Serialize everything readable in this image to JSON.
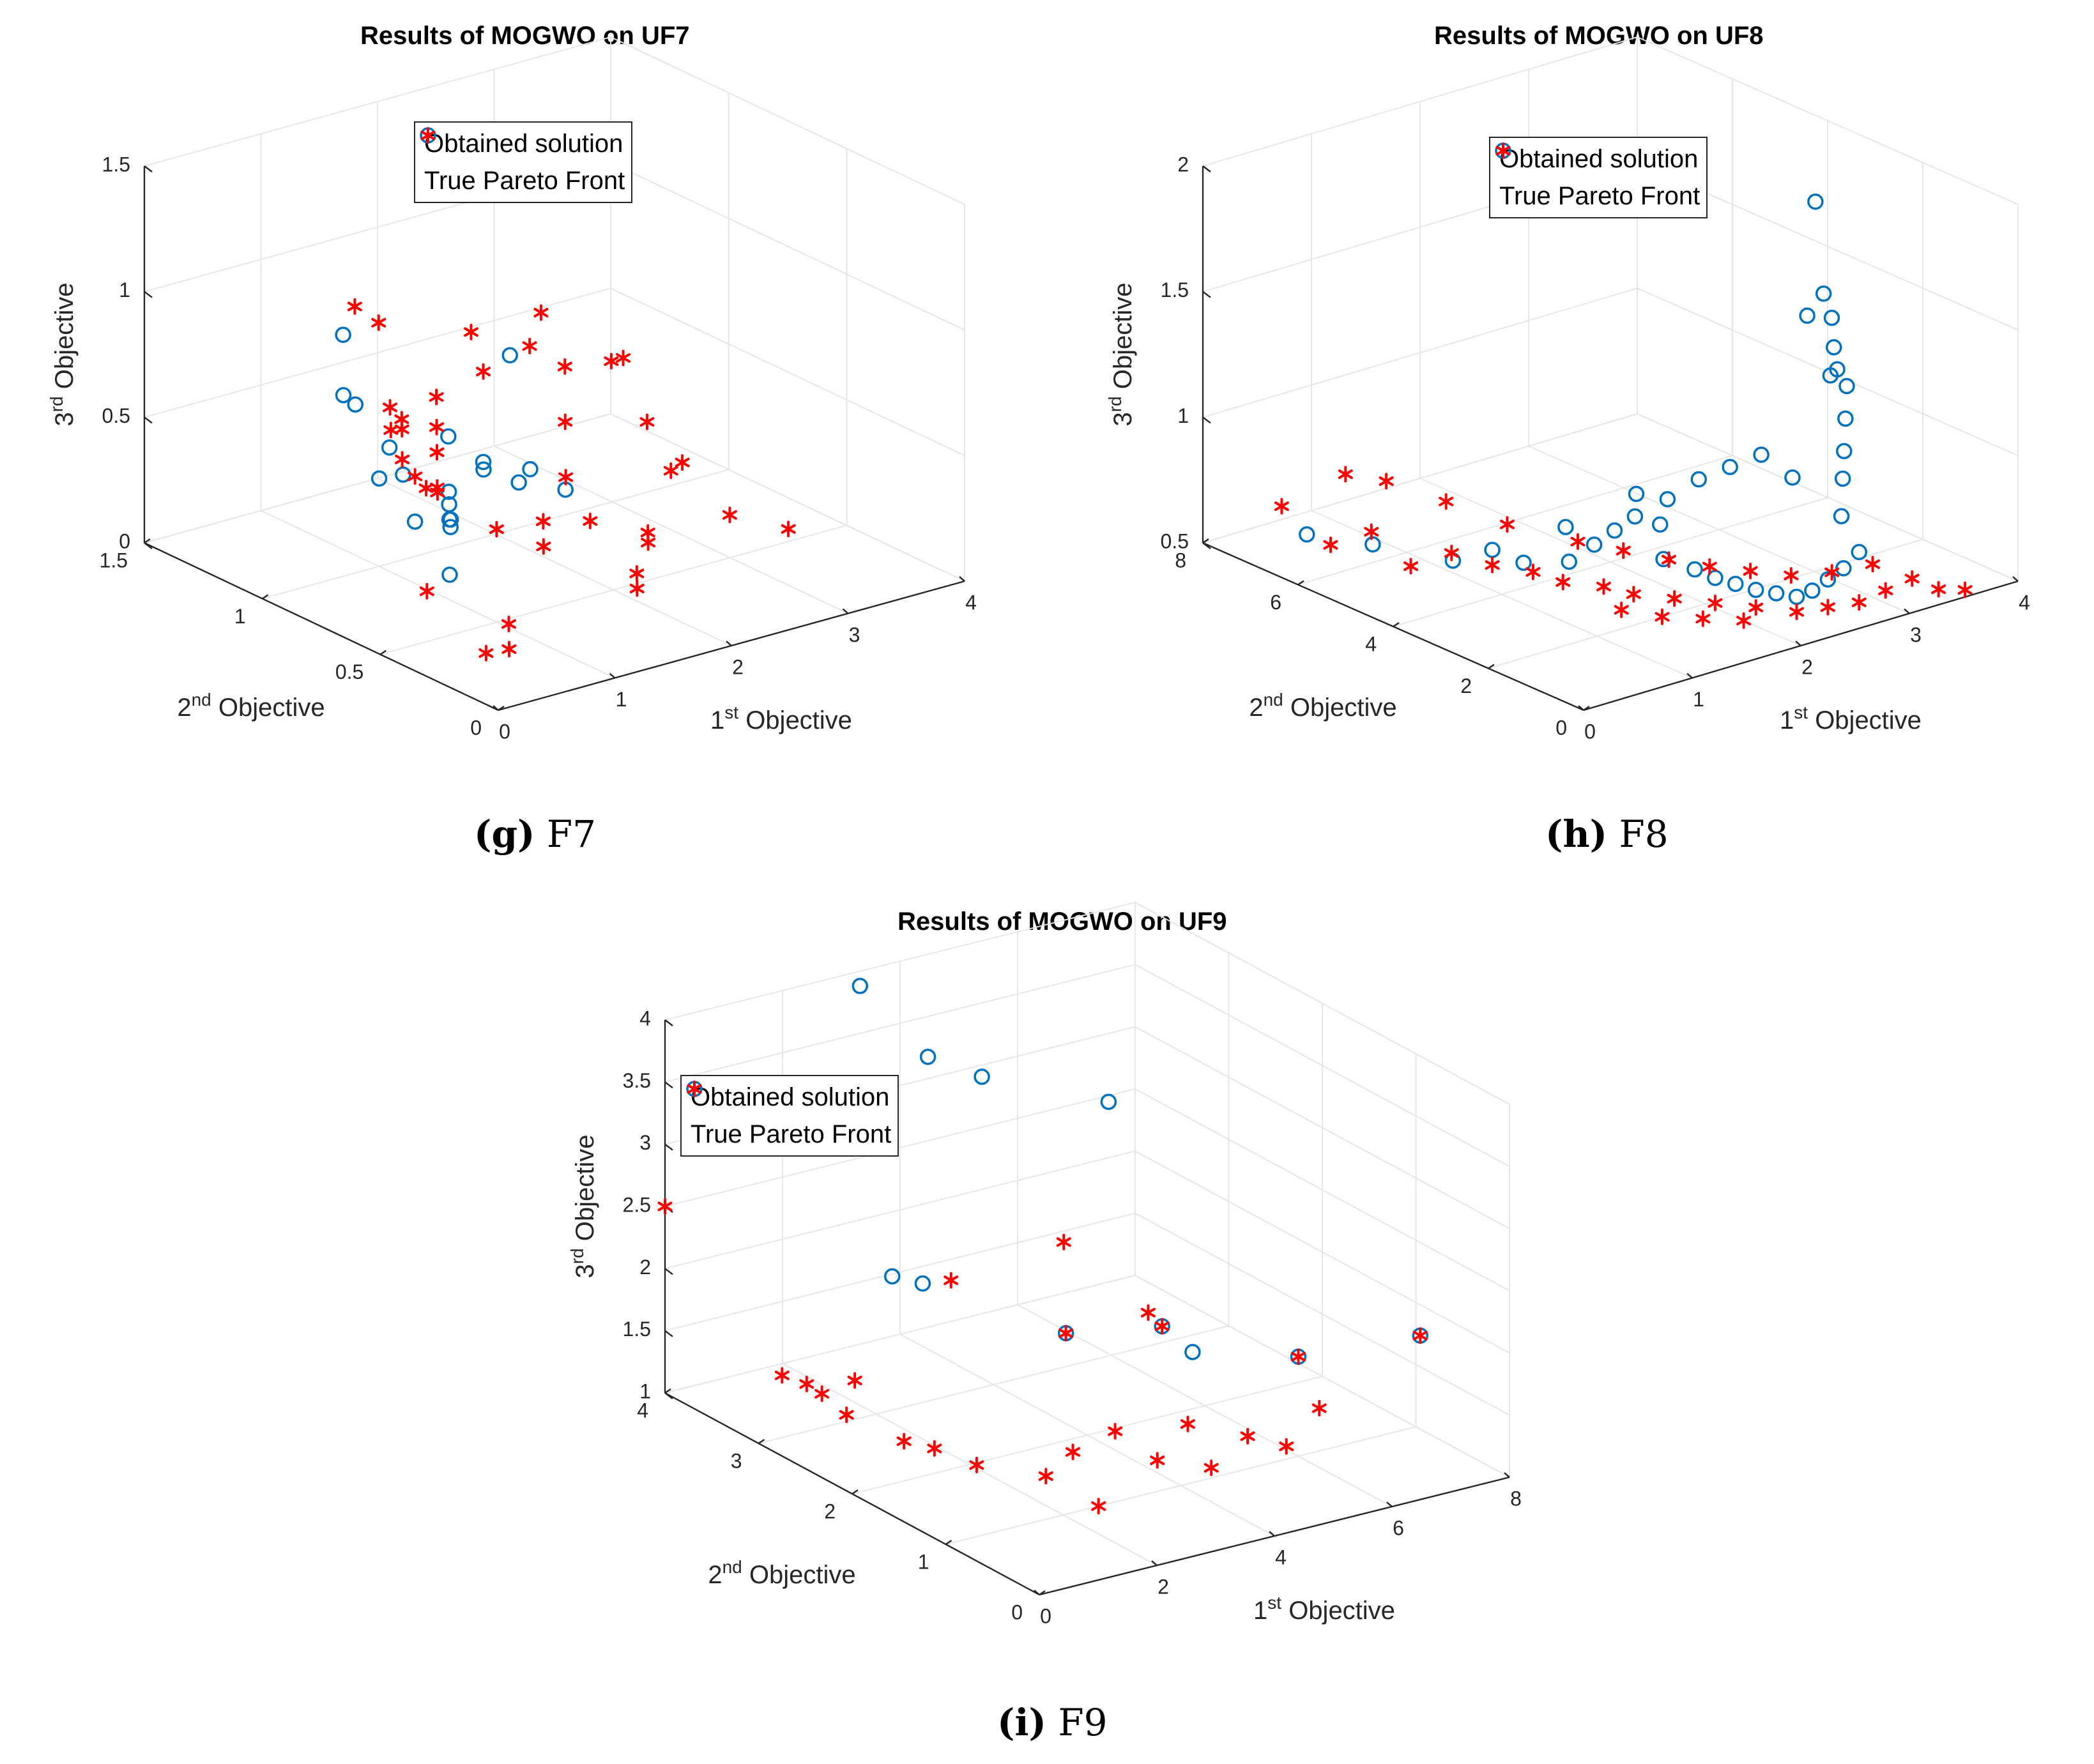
{
  "legend": {
    "obtained": "Obtained solution",
    "true_front": "True Pareto Front"
  },
  "colors": {
    "obtained": "#0072BD",
    "true_front": "#FF0000",
    "grid": "#E6E6E6",
    "axis": "#262626"
  },
  "panels": [
    {
      "title": "Results of MOGWO on UF7",
      "caption_letter": "(g)",
      "caption_text": "F7",
      "xlabel_base": "1",
      "xlabel_sup": "st",
      "xlabel_rest": " Objective",
      "ylabel_base": "2",
      "ylabel_sup": "nd",
      "ylabel_rest": " Objective",
      "zlabel_base": "3",
      "zlabel_sup": "rd",
      "zlabel_rest": " Objective"
    },
    {
      "title": "Results of MOGWO on UF8",
      "caption_letter": "(h)",
      "caption_text": "F8",
      "xlabel_base": "1",
      "xlabel_sup": "st",
      "xlabel_rest": " Objective",
      "ylabel_base": "2",
      "ylabel_sup": "nd",
      "ylabel_rest": " Objective",
      "zlabel_base": "3",
      "zlabel_sup": "rd",
      "zlabel_rest": " Objective"
    },
    {
      "title": "Results of MOGWO on UF9",
      "caption_letter": "(i)",
      "caption_text": "F9",
      "xlabel_base": "1",
      "xlabel_sup": "st",
      "xlabel_rest": " Objective",
      "ylabel_base": "2",
      "ylabel_sup": "nd",
      "ylabel_rest": " Objective",
      "zlabel_base": "3",
      "zlabel_sup": "rd",
      "zlabel_rest": " Objective"
    }
  ],
  "chart_data": [
    {
      "type": "scatter",
      "title": "Results of MOGWO on UF7",
      "xlabel": "1st Objective",
      "ylabel": "2nd Objective",
      "zlabel": "3rd Objective",
      "xlim": [
        0,
        4
      ],
      "ylim": [
        0,
        1.5
      ],
      "zlim": [
        0,
        1.5
      ],
      "xticks": [
        "0",
        "1",
        "2",
        "3",
        "4"
      ],
      "yticks": [
        "0",
        "0.5",
        "1",
        "1.5"
      ],
      "zticks": [
        "0",
        "0.5",
        "1",
        "1.5"
      ],
      "grid": true,
      "legend_position": "top",
      "series": [
        {
          "name": "Obtained solution",
          "marker": "circle",
          "points": [
            [
              0.1,
              0.0,
              1.4
            ],
            [
              0.2,
              0.3,
              0.6
            ],
            [
              0.4,
              0.4,
              0.5
            ],
            [
              0.6,
              0.7,
              0.55
            ],
            [
              0.5,
              0.6,
              0.42
            ],
            [
              0.8,
              0.9,
              0.42
            ],
            [
              1.0,
              1.1,
              0.6
            ],
            [
              1.1,
              1.2,
              0.58
            ],
            [
              1.3,
              1.3,
              0.75
            ],
            [
              1.2,
              0.8,
              0.25
            ],
            [
              1.4,
              0.9,
              0.24
            ],
            [
              1.6,
              1.0,
              0.22
            ],
            [
              2.0,
              1.2,
              0.3
            ],
            [
              2.1,
              1.1,
              0.2
            ],
            [
              2.2,
              1.0,
              0.18
            ],
            [
              2.3,
              1.2,
              0.16
            ],
            [
              2.5,
              1.1,
              0.15
            ],
            [
              2.6,
              1.0,
              0.1
            ],
            [
              1.9,
              1.4,
              0.18
            ],
            [
              1.0,
              0.7,
              0.1
            ]
          ]
        },
        {
          "name": "True Pareto Front",
          "marker": "asterisk",
          "points": [
            [
              0.3,
              0.2,
              0.1
            ],
            [
              0.4,
              0.5,
              0.2
            ],
            [
              0.5,
              0.6,
              0.6
            ],
            [
              0.9,
              0.9,
              0.6
            ],
            [
              1.2,
              1.1,
              0.9
            ],
            [
              1.4,
              1.3,
              0.85
            ],
            [
              1.0,
              0.8,
              0.4
            ],
            [
              1.2,
              1.0,
              0.4
            ],
            [
              1.4,
              1.1,
              0.45
            ],
            [
              1.5,
              1.2,
              0.48
            ],
            [
              1.6,
              1.2,
              0.42
            ],
            [
              1.3,
              0.9,
              0.3
            ],
            [
              1.5,
              1.0,
              0.25
            ],
            [
              1.7,
              1.1,
              0.32
            ],
            [
              1.9,
              1.2,
              0.35
            ],
            [
              2.1,
              1.3,
              0.4
            ],
            [
              2.3,
              1.2,
              0.52
            ],
            [
              2.6,
              1.4,
              0.55
            ],
            [
              2.9,
              1.3,
              0.5
            ],
            [
              3.2,
              1.4,
              0.55
            ],
            [
              3.5,
              1.2,
              0.42
            ],
            [
              3.6,
              1.3,
              0.35
            ],
            [
              3.3,
              1.0,
              0.28
            ],
            [
              3.1,
              0.8,
              0.2
            ],
            [
              3.4,
              0.9,
              0.15
            ],
            [
              3.2,
              0.6,
              0.1
            ],
            [
              3.5,
              0.5,
              0.05
            ],
            [
              2.7,
              0.7,
              0.05
            ],
            [
              2.5,
              0.6,
              0.08
            ],
            [
              2.2,
              0.5,
              0.04
            ],
            [
              2.0,
              0.4,
              0.05
            ],
            [
              1.8,
              0.5,
              0.3
            ],
            [
              1.6,
              0.6,
              0.28
            ],
            [
              1.4,
              0.5,
              0.25
            ],
            [
              1.2,
              0.6,
              0.3
            ],
            [
              0.9,
              0.4,
              0.05
            ],
            [
              0.7,
              0.3,
              0.02
            ],
            [
              2.4,
              0.9,
              0.22
            ],
            [
              2.8,
              1.1,
              0.3
            ],
            [
              3.0,
              1.2,
              0.45
            ]
          ]
        }
      ]
    },
    {
      "type": "scatter",
      "title": "Results of MOGWO on UF8",
      "xlabel": "1st Objective",
      "ylabel": "2nd Objective",
      "zlabel": "3rd Objective",
      "xlim": [
        0,
        4
      ],
      "ylim": [
        0,
        8
      ],
      "zlim": [
        0.5,
        2
      ],
      "xticks": [
        "0",
        "1",
        "2",
        "3",
        "4"
      ],
      "yticks": [
        "0",
        "2",
        "4",
        "6",
        "8"
      ],
      "zticks": [
        "0.5",
        "1",
        "1.5",
        "2"
      ],
      "grid": true,
      "legend_position": "top",
      "series": [
        {
          "name": "Obtained solution",
          "marker": "circle",
          "points": [
            [
              0.3,
              6.5,
              0.62
            ],
            [
              0.6,
              5.8,
              0.6
            ],
            [
              0.9,
              4.8,
              0.58
            ],
            [
              1.2,
              4.0,
              0.6
            ],
            [
              1.4,
              3.5,
              0.62
            ],
            [
              1.5,
              3.2,
              0.7
            ],
            [
              1.6,
              3.0,
              0.76
            ],
            [
              1.7,
              2.8,
              0.82
            ],
            [
              1.8,
              2.5,
              0.8
            ],
            [
              1.7,
              2.2,
              0.7
            ],
            [
              1.9,
              2.0,
              0.65
            ],
            [
              2.0,
              1.8,
              0.62
            ],
            [
              2.1,
              1.6,
              0.6
            ],
            [
              2.2,
              1.4,
              0.58
            ],
            [
              2.3,
              1.2,
              0.57
            ],
            [
              2.4,
              1.0,
              0.56
            ],
            [
              2.5,
              0.9,
              0.58
            ],
            [
              2.6,
              0.8,
              0.62
            ],
            [
              2.7,
              0.7,
              0.66
            ],
            [
              2.8,
              0.6,
              0.72
            ],
            [
              2.9,
              1.2,
              0.8
            ],
            [
              3.0,
              1.4,
              0.92
            ],
            [
              3.1,
              1.6,
              1.0
            ],
            [
              3.2,
              1.8,
              1.1
            ],
            [
              3.3,
              2.0,
              1.2
            ],
            [
              3.3,
              2.2,
              1.25
            ],
            [
              3.4,
              2.5,
              1.3
            ],
            [
              3.5,
              2.8,
              1.15
            ],
            [
              3.6,
              3.0,
              1.35
            ],
            [
              3.7,
              3.4,
              1.4
            ],
            [
              3.8,
              3.8,
              1.72
            ],
            [
              3.9,
              4.2,
              1.22
            ],
            [
              2.2,
              2.6,
              0.92
            ],
            [
              2.4,
              2.4,
              0.96
            ],
            [
              2.6,
              2.2,
              1.0
            ],
            [
              2.8,
              2.0,
              0.9
            ],
            [
              2.0,
              2.8,
              0.85
            ],
            [
              1.8,
              3.0,
              0.88
            ],
            [
              1.5,
              3.8,
              0.72
            ],
            [
              1.0,
              4.2,
              0.66
            ]
          ]
        },
        {
          "name": "True Pareto Front",
          "marker": "asterisk",
          "points": [
            [
              0.2,
              6.8,
              0.72
            ],
            [
              0.3,
              6.0,
              0.62
            ],
            [
              0.5,
              5.6,
              0.68
            ],
            [
              0.6,
              5.0,
              0.58
            ],
            [
              0.8,
              4.6,
              0.64
            ],
            [
              1.0,
              4.2,
              0.6
            ],
            [
              1.2,
              3.8,
              0.58
            ],
            [
              1.3,
              3.4,
              0.56
            ],
            [
              1.5,
              3.0,
              0.55
            ],
            [
              1.6,
              2.6,
              0.54
            ],
            [
              1.8,
              2.2,
              0.53
            ],
            [
              2.0,
              1.8,
              0.52
            ],
            [
              2.2,
              1.4,
              0.51
            ],
            [
              2.4,
              1.0,
              0.5
            ],
            [
              2.6,
              0.8,
              0.51
            ],
            [
              2.8,
              0.6,
              0.52
            ],
            [
              3.0,
              0.5,
              0.55
            ],
            [
              3.2,
              0.4,
              0.58
            ],
            [
              3.4,
              0.3,
              0.52
            ],
            [
              3.6,
              0.2,
              0.5
            ],
            [
              1.1,
              5.4,
              0.74
            ],
            [
              1.4,
              4.8,
              0.66
            ],
            [
              1.7,
              4.0,
              0.62
            ],
            [
              1.9,
              3.5,
              0.6
            ],
            [
              2.1,
              3.0,
              0.58
            ],
            [
              2.3,
              2.6,
              0.56
            ],
            [
              2.5,
              2.2,
              0.55
            ],
            [
              2.7,
              1.8,
              0.54
            ],
            [
              2.9,
              1.4,
              0.56
            ],
            [
              3.1,
              1.0,
              0.6
            ],
            [
              0.9,
              6.2,
              0.78
            ],
            [
              0.7,
              6.6,
              0.8
            ],
            [
              1.6,
              2.0,
              0.5
            ],
            [
              1.8,
              1.6,
              0.5
            ],
            [
              2.0,
              1.2,
              0.5
            ],
            [
              1.4,
              2.4,
              0.52
            ]
          ]
        }
      ]
    },
    {
      "type": "scatter",
      "title": "Results of MOGWO on UF9",
      "xlabel": "1st Objective",
      "ylabel": "2nd Objective",
      "zlabel": "3rd Objective",
      "xlim": [
        0,
        8
      ],
      "ylim": [
        0,
        4
      ],
      "zlim": [
        1,
        4
      ],
      "xticks": [
        "0",
        "2",
        "4",
        "6",
        "8"
      ],
      "yticks": [
        "0",
        "1",
        "2",
        "3",
        "4"
      ],
      "zticks": [
        "1",
        "1.5",
        "2",
        "2.5",
        "3",
        "3.5",
        "4"
      ],
      "grid": true,
      "legend_position": "top-left",
      "series": [
        {
          "name": "Obtained solution",
          "marker": "circle",
          "points": [
            [
              3.0,
              3.8,
              4.0
            ],
            [
              3.2,
              3.2,
              3.65
            ],
            [
              3.8,
              3.0,
              3.5
            ],
            [
              5.0,
              2.4,
              3.4
            ],
            [
              1.0,
              2.2,
              2.55
            ],
            [
              1.2,
              2.0,
              2.55
            ],
            [
              3.0,
              1.6,
              2.1
            ],
            [
              4.0,
              1.2,
              2.2
            ],
            [
              4.2,
              1.0,
              2.05
            ],
            [
              6.8,
              0.2,
              2.2
            ],
            [
              6.0,
              1.0,
              1.8
            ]
          ]
        },
        {
          "name": "True Pareto Front",
          "marker": "asterisk",
          "points": [
            [
              0.0,
              4.0,
              2.5
            ],
            [
              0.4,
              3.0,
              1.5
            ],
            [
              0.5,
              2.8,
              1.5
            ],
            [
              0.6,
              2.7,
              1.45
            ],
            [
              0.7,
              2.5,
              1.35
            ],
            [
              1.0,
              2.6,
              1.55
            ],
            [
              1.2,
              2.2,
              1.2
            ],
            [
              1.4,
              2.0,
              1.2
            ],
            [
              1.8,
              1.8,
              1.1
            ],
            [
              2.5,
              1.5,
              1.05
            ],
            [
              2.8,
              1.4,
              1.25
            ],
            [
              3.0,
              1.6,
              2.1
            ],
            [
              3.2,
              1.2,
              1.45
            ],
            [
              3.6,
              1.0,
              1.25
            ],
            [
              3.8,
              0.8,
              1.6
            ],
            [
              4.0,
              1.2,
              2.2
            ],
            [
              4.2,
              0.8,
              1.2
            ],
            [
              4.5,
              0.6,
              1.5
            ],
            [
              5.0,
              0.5,
              1.4
            ],
            [
              5.4,
              0.4,
              1.7
            ],
            [
              6.0,
              1.0,
              1.8
            ],
            [
              6.8,
              0.2,
              2.2
            ],
            [
              2.0,
              2.2,
              2.4
            ],
            [
              3.6,
              2.0,
              2.6
            ],
            [
              4.4,
              1.6,
              2.1
            ],
            [
              2.6,
              1.0,
              1.0
            ]
          ]
        }
      ]
    }
  ]
}
